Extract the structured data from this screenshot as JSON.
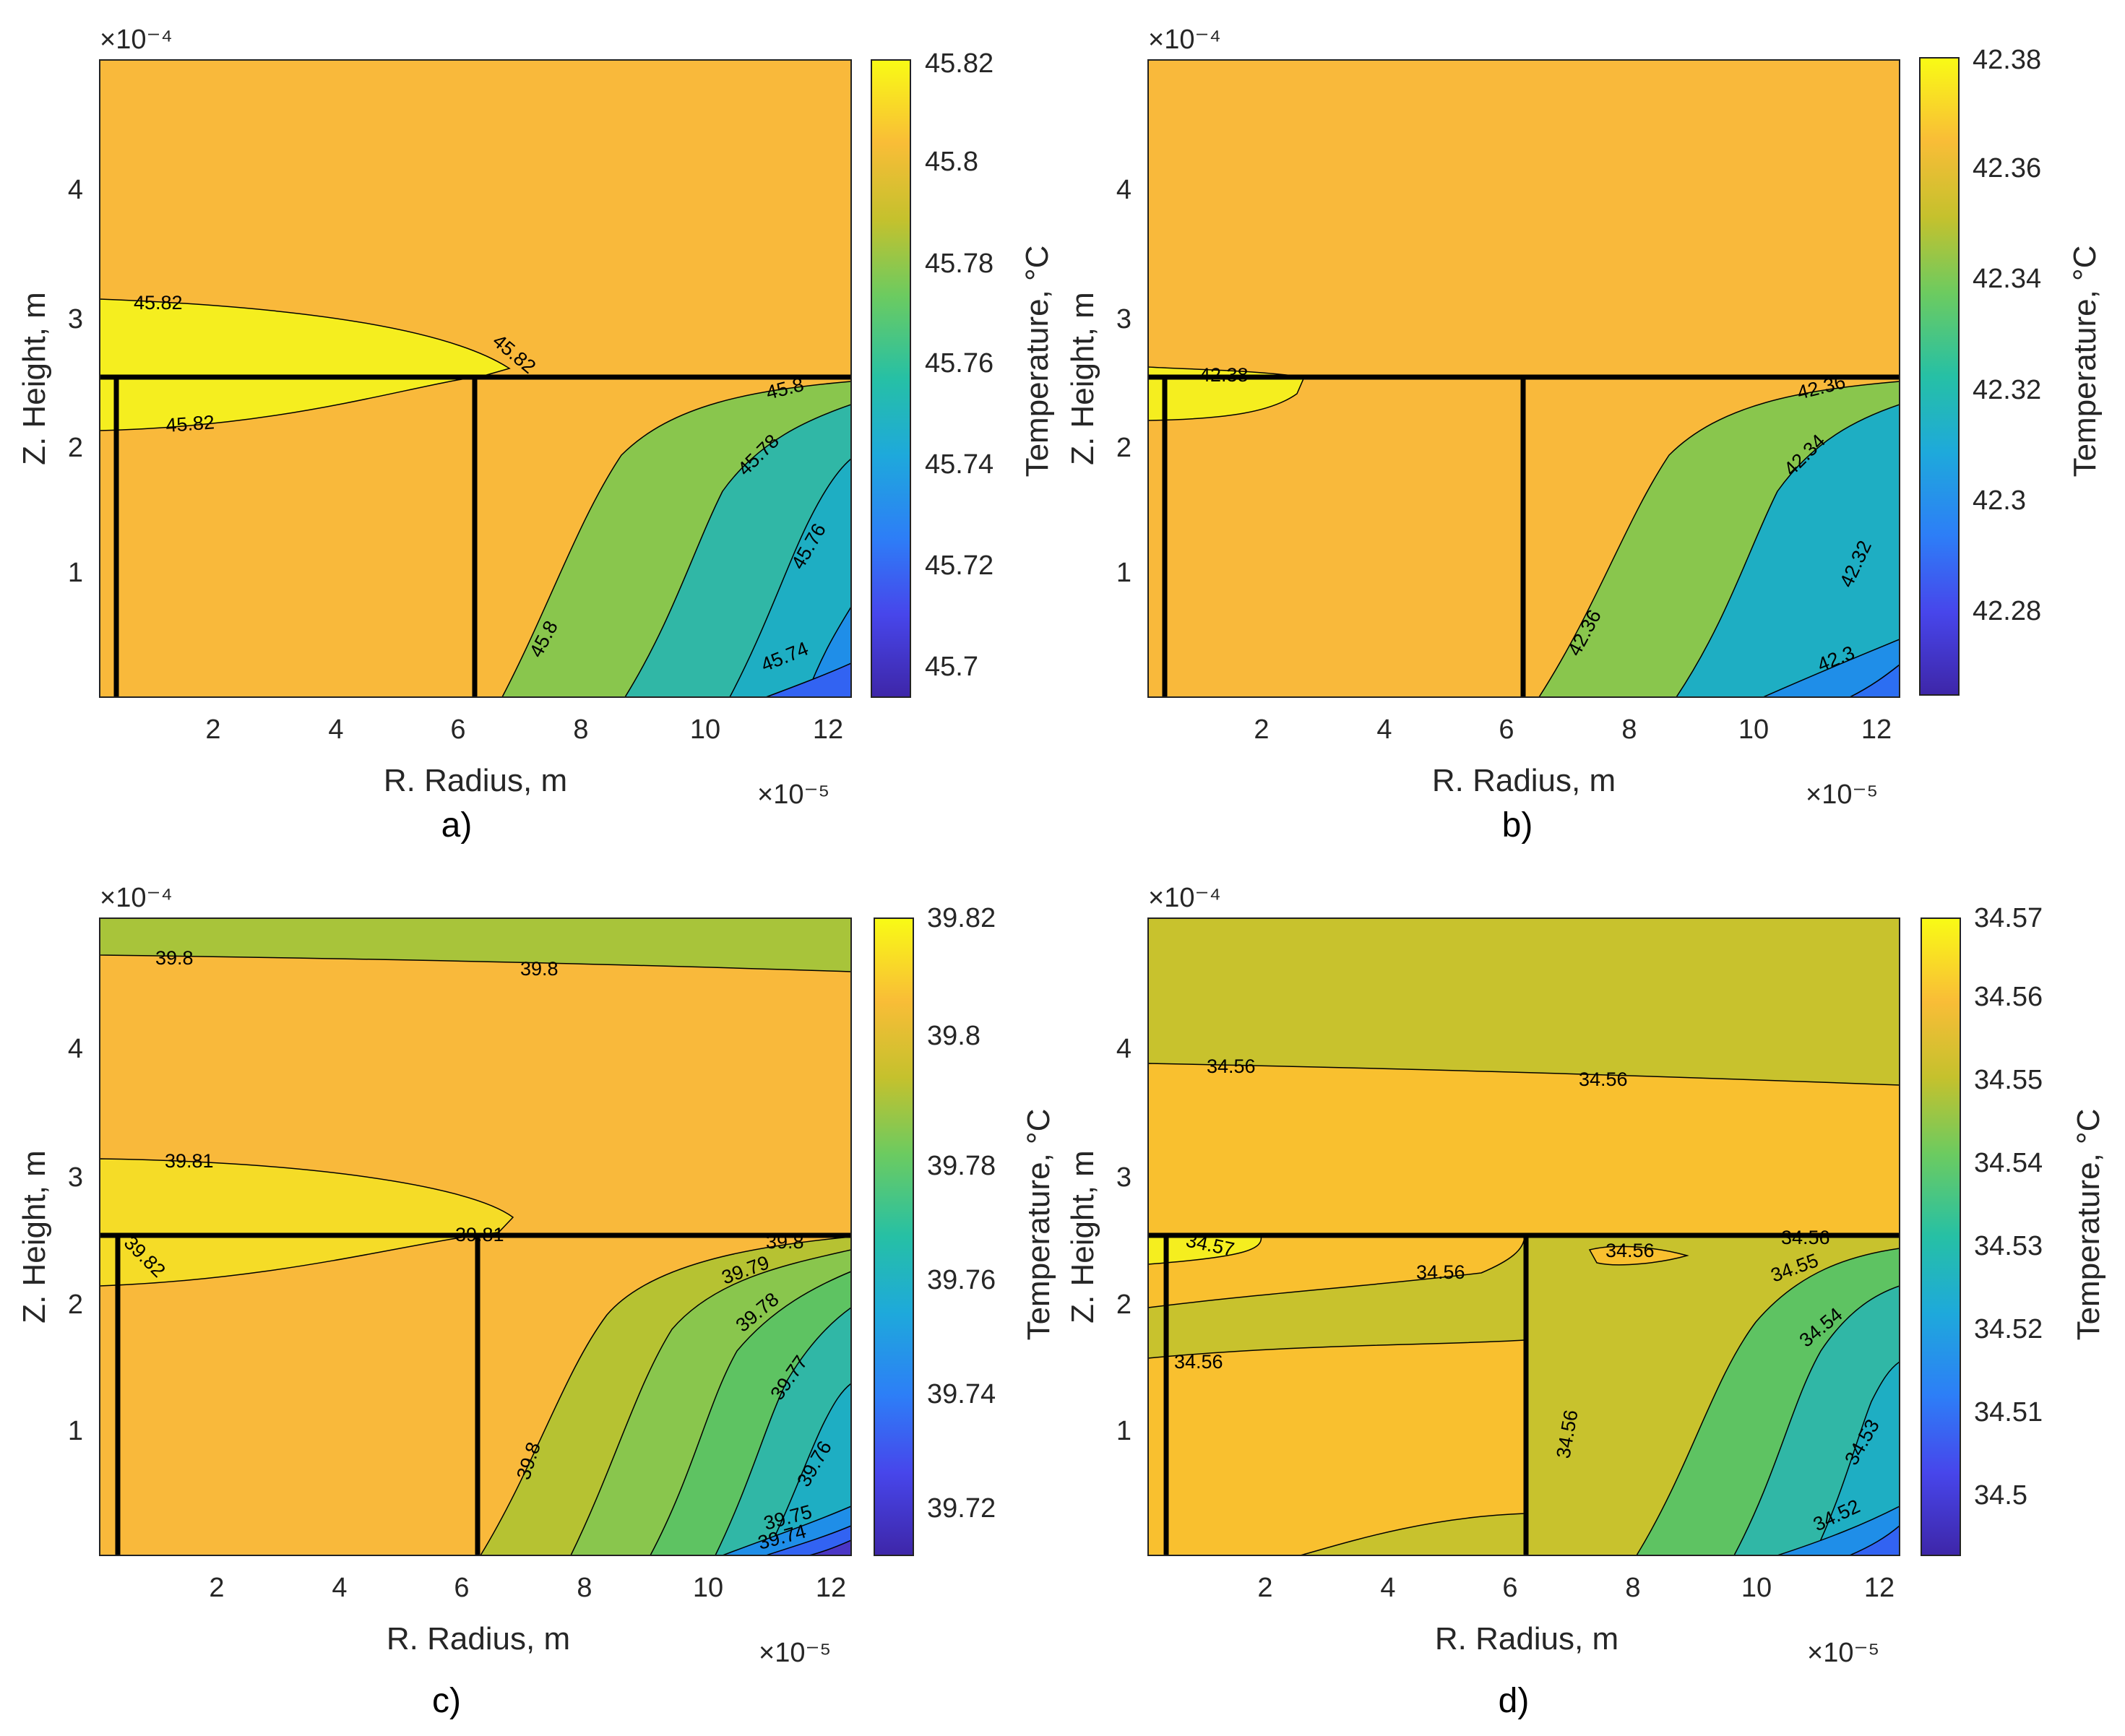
{
  "figure": {
    "panels": [
      {
        "letter": "a)",
        "xlabel": "R. Radius, m",
        "ylabel": "Z. Height, m",
        "x_exponent": "×10⁻⁵",
        "y_exponent": "×10⁻⁴",
        "colorbar_label": "Temperature, °C",
        "clim": [
          45.694,
          45.822
        ],
        "colorbar_ticks": [
          "45.7",
          "45.72",
          "45.74",
          "45.76",
          "45.78",
          "45.8",
          "45.82"
        ],
        "contour_labels": [
          "45.82",
          "45.82",
          "45.82",
          "45.8",
          "45.8",
          "45.78",
          "45.76",
          "45.74"
        ]
      },
      {
        "letter": "b)",
        "xlabel": "R. Radius, m",
        "ylabel": "Z. Height, m",
        "x_exponent": "×10⁻⁵",
        "y_exponent": "×10⁻⁴",
        "colorbar_label": "Temperature, °C",
        "clim": [
          42.266,
          42.384
        ],
        "colorbar_ticks": [
          "42.28",
          "42.3",
          "42.32",
          "42.34",
          "42.36",
          "42.38"
        ],
        "contour_labels": [
          "42.38",
          "42.36",
          "42.36",
          "42.34",
          "42.32",
          "42.3"
        ]
      },
      {
        "letter": "c)",
        "xlabel": "R. Radius, m",
        "ylabel": "Z. Height, m",
        "x_exponent": "×10⁻⁵",
        "y_exponent": "×10⁻⁴",
        "colorbar_label": "Temperature, °C",
        "clim": [
          39.711,
          39.822
        ],
        "colorbar_ticks": [
          "39.72",
          "39.74",
          "39.76",
          "39.78",
          "39.8",
          "39.82"
        ],
        "contour_labels": [
          "39.8",
          "39.8",
          "39.81",
          "39.82",
          "39.81",
          "39.8",
          "39.79",
          "39.78",
          "39.77",
          "39.76",
          "39.8",
          "39.75",
          "39.74"
        ]
      },
      {
        "letter": "d)",
        "xlabel": "R. Radius, m",
        "ylabel": "Z. Height, m",
        "x_exponent": "×10⁻⁵",
        "y_exponent": "×10⁻⁴",
        "colorbar_label": "Temperature, °C",
        "clim": [
          34.493,
          34.57
        ],
        "colorbar_ticks": [
          "34.5",
          "34.51",
          "34.52",
          "34.53",
          "34.54",
          "34.55",
          "34.56",
          "34.57"
        ],
        "contour_labels": [
          "34.56",
          "34.56",
          "34.57",
          "34.56",
          "34.56",
          "34.56",
          "34.55",
          "34.54",
          "34.53",
          "34.52",
          "34.56",
          "34.56"
        ]
      }
    ]
  },
  "chart_data": [
    {
      "type": "contour",
      "panel": "a)",
      "xlabel": "R. Radius, m",
      "ylabel": "Z. Height, m",
      "x_scale": "1e-5",
      "y_scale": "1e-4",
      "xlim": [
        0,
        12.4
      ],
      "ylim": [
        0,
        4.95
      ],
      "xticks": [
        2,
        4,
        6,
        8,
        10,
        12
      ],
      "yticks": [
        1,
        2,
        3,
        4
      ],
      "colorbar": {
        "label": "Temperature, °C",
        "range": [
          45.694,
          45.822
        ],
        "ticks": [
          45.7,
          45.72,
          45.74,
          45.76,
          45.78,
          45.8,
          45.82
        ]
      },
      "contour_levels": [
        45.74,
        45.76,
        45.78,
        45.8,
        45.82
      ],
      "structure_lines": {
        "horizontal_at_z": 2.5,
        "vertical_at_r": [
          0.3,
          6.25
        ]
      }
    },
    {
      "type": "contour",
      "panel": "b)",
      "xlabel": "R. Radius, m",
      "ylabel": "Z. Height, m",
      "x_scale": "1e-5",
      "y_scale": "1e-4",
      "xlim": [
        0,
        12.4
      ],
      "ylim": [
        0,
        4.95
      ],
      "xticks": [
        2,
        4,
        6,
        8,
        10,
        12
      ],
      "yticks": [
        1,
        2,
        3,
        4
      ],
      "colorbar": {
        "label": "Temperature, °C",
        "range": [
          42.266,
          42.384
        ],
        "ticks": [
          42.28,
          42.3,
          42.32,
          42.34,
          42.36,
          42.38
        ]
      },
      "contour_levels": [
        42.3,
        42.32,
        42.34,
        42.36,
        42.38
      ],
      "structure_lines": {
        "horizontal_at_z": 2.5,
        "vertical_at_r": [
          0.3,
          6.25
        ]
      }
    },
    {
      "type": "contour",
      "panel": "c)",
      "xlabel": "R. Radius, m",
      "ylabel": "Z. Height, m",
      "x_scale": "1e-5",
      "y_scale": "1e-4",
      "xlim": [
        0,
        12.4
      ],
      "ylim": [
        0,
        4.95
      ],
      "xticks": [
        2,
        4,
        6,
        8,
        10,
        12
      ],
      "yticks": [
        1,
        2,
        3,
        4
      ],
      "colorbar": {
        "label": "Temperature, °C",
        "range": [
          39.711,
          39.822
        ],
        "ticks": [
          39.72,
          39.74,
          39.76,
          39.78,
          39.8,
          39.82
        ]
      },
      "contour_levels": [
        39.74,
        39.75,
        39.76,
        39.77,
        39.78,
        39.79,
        39.8,
        39.81,
        39.82
      ],
      "structure_lines": {
        "horizontal_at_z": 2.5,
        "vertical_at_r": [
          0.3,
          6.25
        ]
      }
    },
    {
      "type": "contour",
      "panel": "d)",
      "xlabel": "R. Radius, m",
      "ylabel": "Z. Height, m",
      "x_scale": "1e-5",
      "y_scale": "1e-4",
      "xlim": [
        0,
        12.4
      ],
      "ylim": [
        0,
        4.95
      ],
      "xticks": [
        2,
        4,
        6,
        8,
        10,
        12
      ],
      "yticks": [
        1,
        2,
        3,
        4
      ],
      "colorbar": {
        "label": "Temperature, °C",
        "range": [
          34.493,
          34.57
        ],
        "ticks": [
          34.5,
          34.51,
          34.52,
          34.53,
          34.54,
          34.55,
          34.56,
          34.57
        ]
      },
      "contour_levels": [
        34.52,
        34.53,
        34.54,
        34.55,
        34.56,
        34.57
      ],
      "structure_lines": {
        "horizontal_at_z": 2.5,
        "vertical_at_r": [
          0.3,
          6.25
        ]
      }
    }
  ],
  "colors": {
    "fill_orange": "#f9b93b",
    "fill_yellow": "#f5ee1f",
    "fill_olive": "#c8c22d",
    "fill_green": "#89c64d",
    "fill_green2": "#5ec362",
    "fill_teal": "#30b7a6",
    "fill_cyan": "#1eaec3",
    "fill_blue": "#1f8ee8",
    "fill_dblue": "#3263f2",
    "fill_violet": "#4b36c5",
    "structure_line": "#000000"
  }
}
